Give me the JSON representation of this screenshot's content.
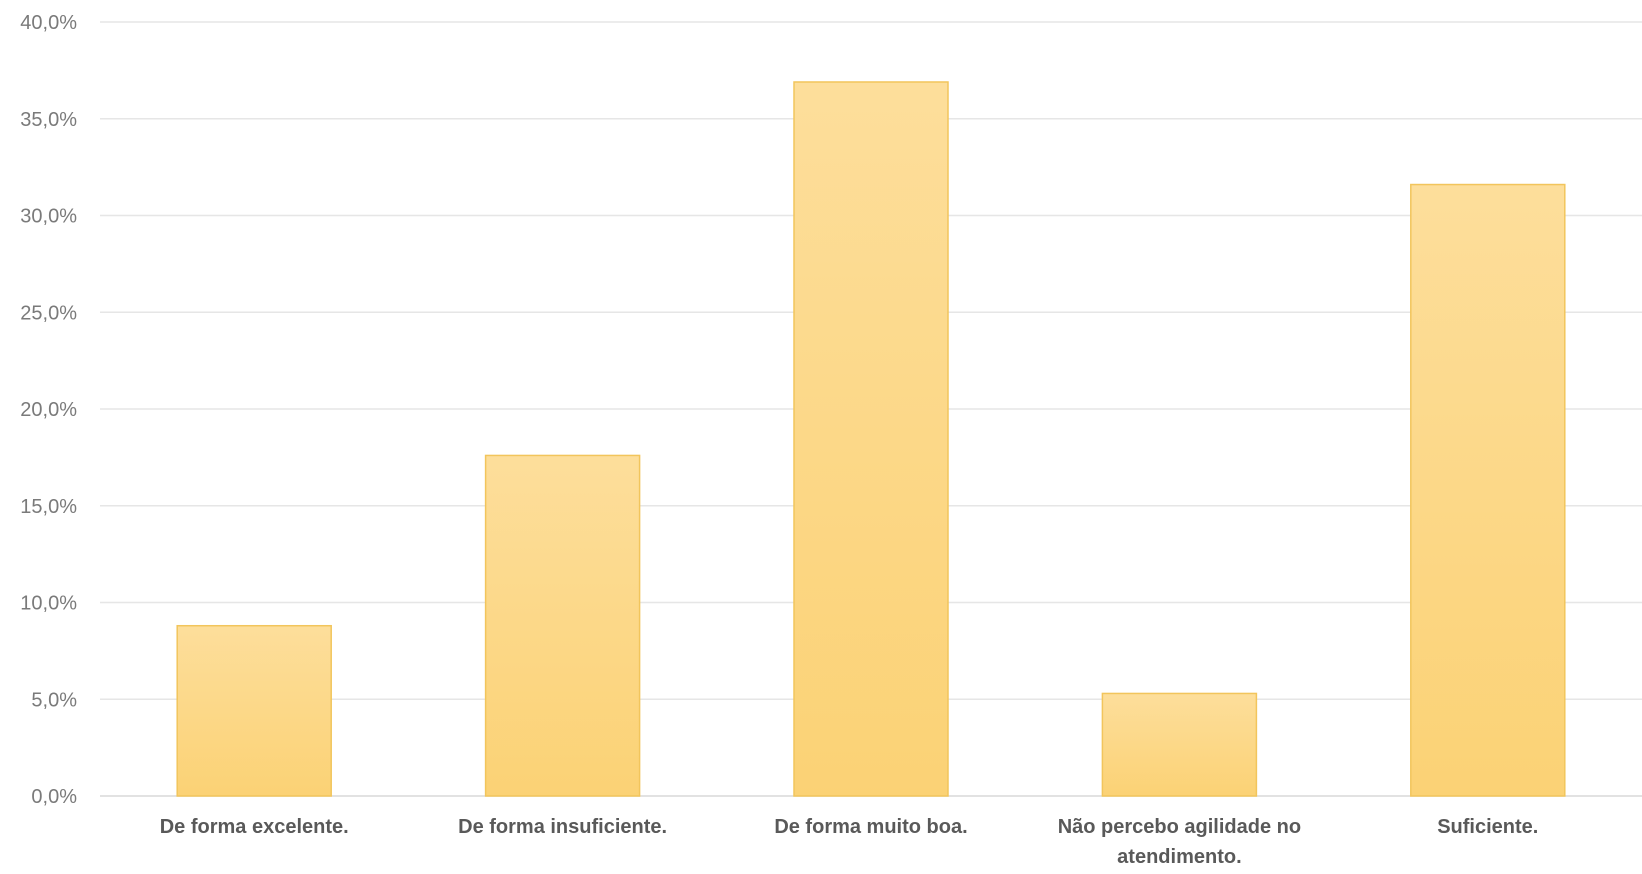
{
  "chart_data": {
    "type": "bar",
    "categories": [
      "De forma excelente.",
      "De forma insuficiente.",
      "De forma muito boa.",
      "Não percebo agilidade no atendimento.",
      "Suficiente."
    ],
    "category_lines": [
      [
        "De forma excelente."
      ],
      [
        "De forma insuficiente."
      ],
      [
        "De forma muito boa."
      ],
      [
        "Não percebo agilidade no",
        "atendimento."
      ],
      [
        "Suficiente."
      ]
    ],
    "values": [
      8.8,
      17.6,
      36.9,
      5.3,
      31.6
    ],
    "ylim": [
      0,
      40
    ],
    "yticks": [
      0,
      5,
      10,
      15,
      20,
      25,
      30,
      35,
      40
    ],
    "ytick_labels": [
      "0,0%",
      "5,0%",
      "10,0%",
      "15,0%",
      "20,0%",
      "25,0%",
      "30,0%",
      "35,0%",
      "40,0%"
    ],
    "grid": true,
    "title": "",
    "xlabel": "",
    "ylabel": "",
    "colors": {
      "bar_top": "#FDDE9B",
      "bar_bottom": "#FBD275",
      "bar_edge": "#F2C55C",
      "grid": "#E6E6E6",
      "axis_text": "#7A7A7A",
      "category_text": "#595959"
    }
  }
}
